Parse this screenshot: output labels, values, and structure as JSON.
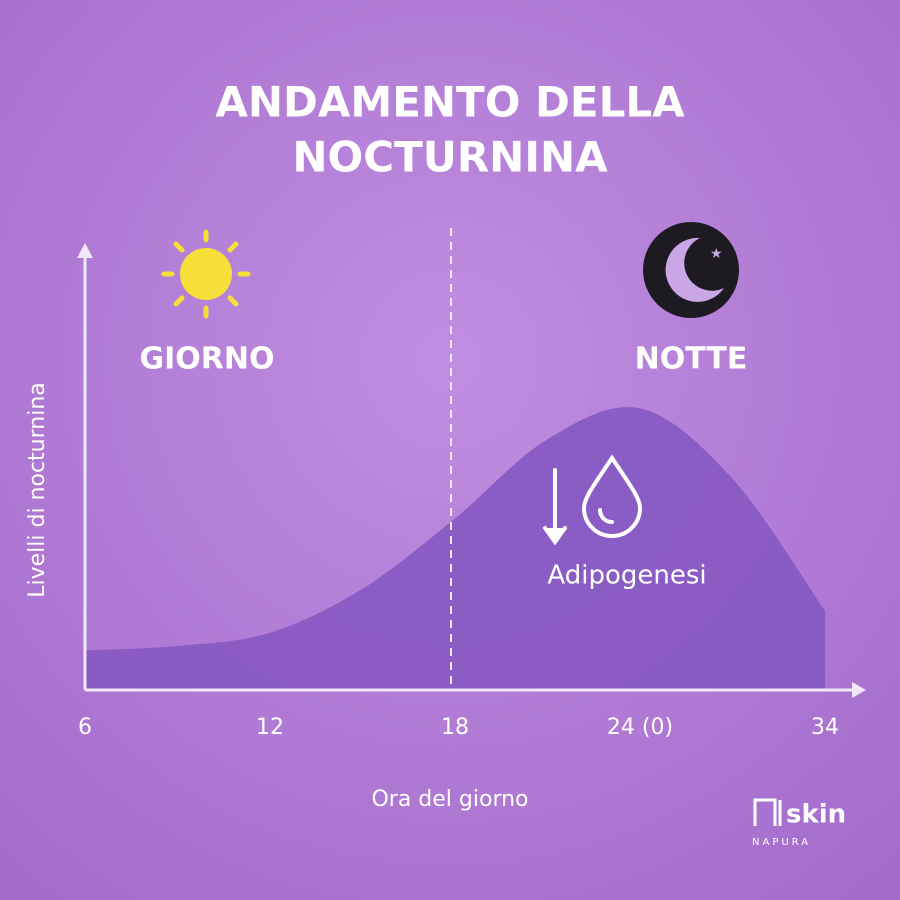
{
  "chart_data": {
    "type": "area",
    "title": [
      "ANDAMENTO DELLA",
      "NOCTURNINA"
    ],
    "x_label": "Ora del giorno",
    "y_label": "Livelli di nocturnina",
    "categories": [
      "6",
      null,
      "12",
      null,
      "18",
      null,
      "24 (0)",
      null,
      "34"
    ],
    "values": [
      9,
      10,
      13,
      23,
      39,
      57,
      64,
      48,
      18
    ],
    "ylim": [
      0,
      100
    ],
    "color": "#8559c2",
    "annotations": {
      "day": "GIORNO",
      "night": "NOTTE",
      "effect": "Adipogenesi"
    },
    "brand": {
      "name": "skin",
      "sub": "NAPURA"
    }
  }
}
